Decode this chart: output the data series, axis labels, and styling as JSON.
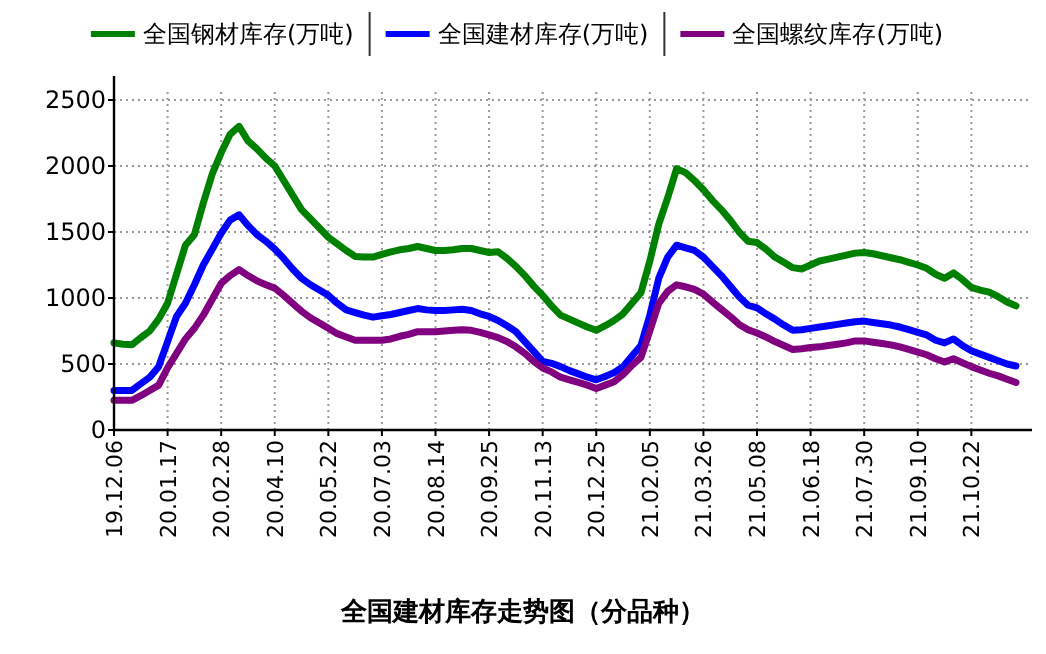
{
  "chart_data": {
    "type": "line",
    "title": "全国建材库存走势图（分品种）",
    "legend": "top",
    "grid": true,
    "ylim": [
      0,
      2500
    ],
    "yticks": [
      0,
      500,
      1000,
      1500,
      2000,
      2500
    ],
    "categories": [
      "19.12.06",
      null,
      null,
      null,
      null,
      null,
      "20.01.17",
      null,
      null,
      null,
      null,
      null,
      "20.02.28",
      null,
      null,
      null,
      null,
      null,
      "20.04.10",
      null,
      null,
      null,
      null,
      null,
      "20.05.22",
      null,
      null,
      null,
      null,
      null,
      "20.07.03",
      null,
      null,
      null,
      null,
      null,
      "20.08.14",
      null,
      null,
      null,
      null,
      null,
      "20.09.25",
      null,
      null,
      null,
      null,
      null,
      "20.11.13",
      null,
      null,
      null,
      null,
      null,
      "20.12.25",
      null,
      null,
      null,
      null,
      null,
      "21.02.05",
      null,
      null,
      null,
      null,
      null,
      "21.03.26",
      null,
      null,
      null,
      null,
      null,
      "21.05.08",
      null,
      null,
      null,
      null,
      null,
      "21.06.18",
      null,
      null,
      null,
      null,
      null,
      "21.07.30",
      null,
      null,
      null,
      null,
      null,
      "21.09.10",
      null,
      null,
      null,
      null,
      null,
      "21.10.22",
      null,
      null,
      null,
      null,
      null
    ],
    "series": [
      {
        "name": "全国钢材库存(万吨)",
        "color": "#008000",
        "values": [
          660,
          650,
          645,
          700,
          750,
          840,
          960,
          1180,
          1400,
          1480,
          1720,
          1940,
          2100,
          2240,
          2300,
          2190,
          2130,
          2060,
          2000,
          1890,
          1780,
          1670,
          1600,
          1530,
          1460,
          1410,
          1360,
          1315,
          1310,
          1310,
          1330,
          1350,
          1365,
          1375,
          1390,
          1375,
          1360,
          1360,
          1365,
          1375,
          1375,
          1360,
          1345,
          1350,
          1300,
          1240,
          1170,
          1090,
          1020,
          940,
          870,
          840,
          810,
          780,
          755,
          790,
          830,
          880,
          960,
          1040,
          1280,
          1560,
          1760,
          1980,
          1950,
          1890,
          1820,
          1740,
          1670,
          1590,
          1500,
          1430,
          1420,
          1370,
          1310,
          1270,
          1230,
          1220,
          1250,
          1280,
          1295,
          1310,
          1325,
          1340,
          1345,
          1335,
          1320,
          1305,
          1290,
          1270,
          1250,
          1225,
          1180,
          1150,
          1190,
          1140,
          1080,
          1060,
          1045,
          1010,
          970,
          940
        ]
      },
      {
        "name": "全国建材库存(万吨)",
        "color": "#0000ff",
        "values": [
          300,
          300,
          300,
          350,
          400,
          480,
          670,
          860,
          960,
          1100,
          1250,
          1370,
          1490,
          1590,
          1630,
          1550,
          1480,
          1430,
          1370,
          1300,
          1220,
          1150,
          1100,
          1060,
          1020,
          960,
          910,
          890,
          870,
          855,
          865,
          875,
          890,
          905,
          920,
          910,
          905,
          905,
          910,
          915,
          905,
          880,
          860,
          830,
          790,
          745,
          670,
          595,
          520,
          505,
          480,
          450,
          425,
          400,
          380,
          405,
          435,
          480,
          560,
          640,
          870,
          1150,
          1310,
          1400,
          1380,
          1360,
          1310,
          1240,
          1170,
          1090,
          1010,
          945,
          925,
          880,
          840,
          795,
          755,
          760,
          770,
          780,
          790,
          800,
          810,
          820,
          825,
          815,
          805,
          795,
          780,
          760,
          740,
          720,
          680,
          660,
          690,
          640,
          600,
          575,
          550,
          525,
          500,
          485
        ]
      },
      {
        "name": "全国螺纹库存(万吨)",
        "color": "#800080",
        "values": [
          225,
          225,
          225,
          260,
          300,
          340,
          470,
          580,
          690,
          770,
          870,
          990,
          1110,
          1170,
          1215,
          1170,
          1130,
          1100,
          1075,
          1020,
          960,
          900,
          850,
          810,
          770,
          730,
          705,
          680,
          680,
          680,
          680,
          690,
          710,
          725,
          745,
          745,
          745,
          750,
          755,
          760,
          755,
          740,
          720,
          700,
          670,
          630,
          580,
          520,
          470,
          440,
          400,
          380,
          360,
          340,
          315,
          340,
          365,
          420,
          490,
          550,
          750,
          960,
          1050,
          1100,
          1085,
          1065,
          1030,
          970,
          915,
          860,
          800,
          760,
          735,
          705,
          670,
          640,
          610,
          615,
          625,
          630,
          640,
          650,
          660,
          675,
          675,
          665,
          655,
          645,
          630,
          610,
          590,
          570,
          540,
          515,
          540,
          510,
          480,
          455,
          430,
          410,
          385,
          360
        ]
      }
    ]
  }
}
